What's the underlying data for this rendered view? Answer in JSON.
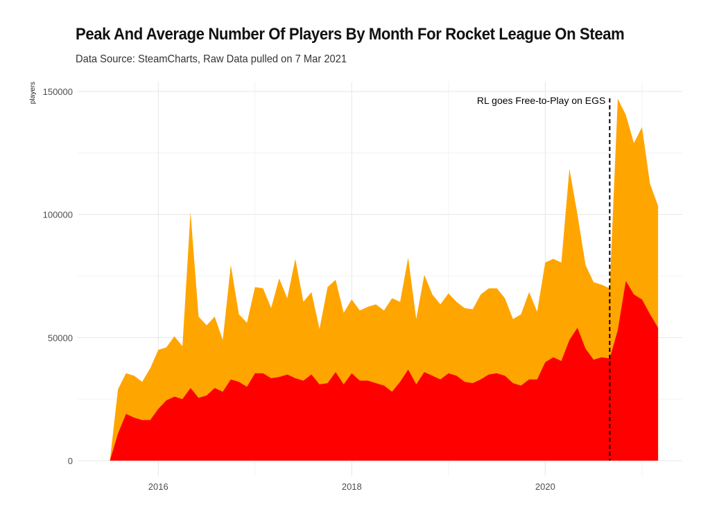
{
  "chart_data": {
    "type": "area",
    "title": "Peak And Average Number Of Players By Month For Rocket League On Steam",
    "subtitle": "Data Source: SteamCharts, Raw Data pulled on 7 Mar 2021",
    "xlabel": "",
    "ylabel": "players",
    "xlim": [
      "2015-03-01",
      "2021-06-01"
    ],
    "ylim": [
      -5000,
      150000
    ],
    "x_ticks": [
      "2016",
      "2018",
      "2020"
    ],
    "y_ticks": [
      "0",
      "50000",
      "100000",
      "150000"
    ],
    "grid": true,
    "legend": "none",
    "series_colors": {
      "peak": "#FFA500",
      "average": "#FF0000"
    },
    "annotation": {
      "text": "RL goes Free-to-Play on EGS",
      "x": "2020-09-01"
    },
    "x": [
      "2015-07-01",
      "2015-08-01",
      "2015-09-01",
      "2015-10-01",
      "2015-11-01",
      "2015-12-01",
      "2016-01-01",
      "2016-02-01",
      "2016-03-01",
      "2016-04-01",
      "2016-05-01",
      "2016-06-01",
      "2016-07-01",
      "2016-08-01",
      "2016-09-01",
      "2016-10-01",
      "2016-11-01",
      "2016-12-01",
      "2017-01-01",
      "2017-02-01",
      "2017-03-01",
      "2017-04-01",
      "2017-05-01",
      "2017-06-01",
      "2017-07-01",
      "2017-08-01",
      "2017-09-01",
      "2017-10-01",
      "2017-11-01",
      "2017-12-01",
      "2018-01-01",
      "2018-02-01",
      "2018-03-01",
      "2018-04-01",
      "2018-05-01",
      "2018-06-01",
      "2018-07-01",
      "2018-08-01",
      "2018-09-01",
      "2018-10-01",
      "2018-11-01",
      "2018-12-01",
      "2019-01-01",
      "2019-02-01",
      "2019-03-01",
      "2019-04-01",
      "2019-05-01",
      "2019-06-01",
      "2019-07-01",
      "2019-08-01",
      "2019-09-01",
      "2019-10-01",
      "2019-11-01",
      "2019-12-01",
      "2020-01-01",
      "2020-02-01",
      "2020-03-01",
      "2020-04-01",
      "2020-05-01",
      "2020-06-01",
      "2020-07-01",
      "2020-08-01",
      "2020-09-01",
      "2020-10-01",
      "2020-11-01",
      "2020-12-01",
      "2021-01-01",
      "2021-02-01",
      "2021-03-01"
    ],
    "series": [
      {
        "name": "peak",
        "values": [
          0,
          29000,
          35500,
          34500,
          32000,
          37500,
          45000,
          46000,
          50500,
          46500,
          101000,
          58500,
          55000,
          58500,
          49000,
          79500,
          59500,
          56000,
          70500,
          70000,
          62000,
          74000,
          66000,
          82000,
          64500,
          68500,
          53500,
          70500,
          73500,
          60000,
          65500,
          61000,
          62500,
          63500,
          61000,
          66000,
          64500,
          82500,
          57500,
          75500,
          67500,
          63500,
          68000,
          64500,
          62000,
          61500,
          67500,
          70000,
          70000,
          66000,
          57500,
          59500,
          68500,
          60500,
          80500,
          82000,
          80500,
          118500,
          100000,
          79500,
          72500,
          71500,
          70000,
          147000,
          140500,
          129000,
          135500,
          112500,
          103500
        ]
      },
      {
        "name": "average",
        "values": [
          0,
          11000,
          19000,
          17500,
          16500,
          16500,
          21000,
          24500,
          26000,
          25000,
          29500,
          25500,
          26500,
          29500,
          28000,
          33000,
          32000,
          30000,
          35500,
          35500,
          33500,
          34000,
          35000,
          33500,
          32500,
          35000,
          31000,
          31500,
          36000,
          31000,
          35500,
          32500,
          32500,
          31500,
          30500,
          28000,
          32000,
          37000,
          31000,
          36000,
          34500,
          33000,
          35500,
          34500,
          32000,
          31500,
          33000,
          35000,
          35500,
          34500,
          31500,
          30500,
          33000,
          33000,
          40000,
          42000,
          40500,
          49000,
          54000,
          45500,
          41000,
          42000,
          41500,
          53000,
          73000,
          67500,
          65500,
          59500,
          54000
        ]
      }
    ]
  }
}
